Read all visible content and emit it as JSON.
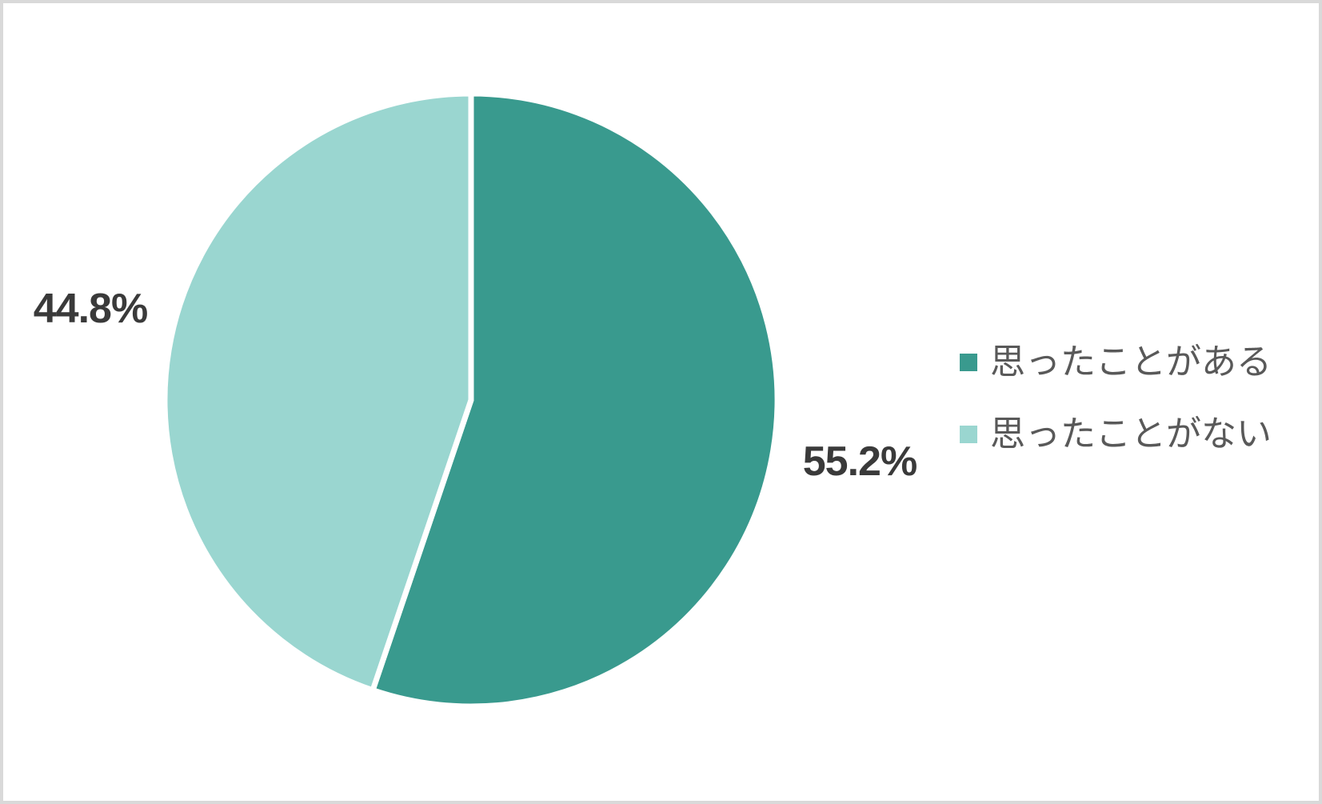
{
  "chart_data": {
    "type": "pie",
    "title": "",
    "legend_position": "right",
    "start_angle_deg": -90,
    "direction": "clockwise",
    "slice_border_color": "#ffffff",
    "data_label_color": "#3a3a3a",
    "legend_text_color": "#595959",
    "frame_border_color": "#d9d9d9",
    "slices": [
      {
        "label": "思ったことがある",
        "value": 55.2,
        "display": "55.2%",
        "color": "#399a8e"
      },
      {
        "label": "思ったことがない",
        "value": 44.8,
        "display": "44.8%",
        "color": "#9ad6d0"
      }
    ]
  }
}
